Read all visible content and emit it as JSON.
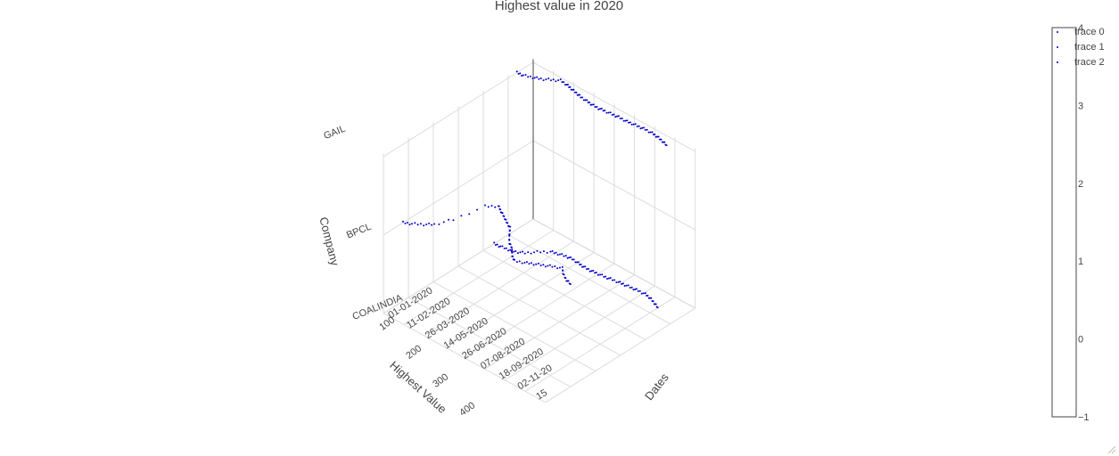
{
  "chart_data": {
    "type": "scatter",
    "title": "Highest value in 2020",
    "axes": {
      "x": {
        "title": "Dates",
        "ticks": [
          "01-01-2020",
          "11-02-2020",
          "26-03-2020",
          "14-05-2020",
          "26-06-2020",
          "07-08-2020",
          "18-09-2020",
          "02-11-20",
          "15"
        ]
      },
      "y": {
        "title": "Company",
        "ticks": [
          "COALINDIA",
          "BPCL",
          "GAIL"
        ]
      },
      "z": {
        "title": "Highest Value",
        "ticks": [
          "100",
          "200",
          "300",
          "400"
        ]
      }
    },
    "legend": {
      "placement": "top-right",
      "entries": [
        "trace 0",
        "trace 1",
        "trace 2"
      ]
    },
    "colorbar": {
      "ticks": [
        "4",
        "3",
        "2",
        "1",
        "0",
        "−1"
      ],
      "range": [
        -1,
        4
      ]
    },
    "marker_color": "#0000cc",
    "grid": true,
    "series": [
      {
        "company": "GAIL",
        "points": [
          {
            "date": "01-01-2020",
            "value": 130
          },
          {
            "date": "15-01-2020",
            "value": 128
          },
          {
            "date": "01-02-2020",
            "value": 120
          },
          {
            "date": "15-02-2020",
            "value": 112
          },
          {
            "date": "01-03-2020",
            "value": 100
          },
          {
            "date": "15-03-2020",
            "value": 88
          },
          {
            "date": "01-04-2020",
            "value": 90
          },
          {
            "date": "15-04-2020",
            "value": 94
          },
          {
            "date": "01-05-2020",
            "value": 98
          },
          {
            "date": "15-05-2020",
            "value": 102
          },
          {
            "date": "01-06-2020",
            "value": 104
          },
          {
            "date": "15-06-2020",
            "value": 106
          },
          {
            "date": "01-07-2020",
            "value": 106
          },
          {
            "date": "15-07-2020",
            "value": 104
          },
          {
            "date": "01-08-2020",
            "value": 102
          },
          {
            "date": "15-08-2020",
            "value": 100
          },
          {
            "date": "01-09-2020",
            "value": 100
          },
          {
            "date": "15-09-2020",
            "value": 98
          },
          {
            "date": "01-10-2020",
            "value": 96
          },
          {
            "date": "15-10-2020",
            "value": 94
          },
          {
            "date": "01-11-2020",
            "value": 94
          },
          {
            "date": "15-11-2020",
            "value": 96
          },
          {
            "date": "01-12-2020",
            "value": 100
          },
          {
            "date": "15-12-2020",
            "value": 105
          }
        ]
      },
      {
        "company": "BPCL",
        "points": [
          {
            "date": "01-01-2020",
            "value": 480
          },
          {
            "date": "15-01-2020",
            "value": 470
          },
          {
            "date": "01-02-2020",
            "value": 455
          },
          {
            "date": "15-02-2020",
            "value": 440
          },
          {
            "date": "01-03-2020",
            "value": 400
          },
          {
            "date": "15-03-2020",
            "value": 320
          },
          {
            "date": "01-04-2020",
            "value": 300
          },
          {
            "date": "15-04-2020",
            "value": 310
          },
          {
            "date": "01-05-2020",
            "value": 320
          },
          {
            "date": "15-05-2020",
            "value": 330
          },
          {
            "date": "01-06-2020",
            "value": 340
          },
          {
            "date": "15-06-2020",
            "value": 360
          },
          {
            "date": "01-07-2020",
            "value": 380
          },
          {
            "date": "15-07-2020",
            "value": 390
          },
          {
            "date": "01-08-2020",
            "value": 410
          },
          {
            "date": "15-08-2020",
            "value": 420
          },
          {
            "date": "01-09-2020",
            "value": 410
          },
          {
            "date": "15-09-2020",
            "value": 400
          },
          {
            "date": "01-10-2020",
            "value": 390
          },
          {
            "date": "15-10-2020",
            "value": 380
          },
          {
            "date": "01-11-2020",
            "value": 370
          },
          {
            "date": "15-11-2020",
            "value": 385
          },
          {
            "date": "01-12-2020",
            "value": 395
          },
          {
            "date": "15-12-2020",
            "value": 400
          }
        ]
      },
      {
        "company": "COALINDIA",
        "points": [
          {
            "date": "01-01-2020",
            "value": 200
          },
          {
            "date": "15-01-2020",
            "value": 198
          },
          {
            "date": "01-02-2020",
            "value": 195
          },
          {
            "date": "15-02-2020",
            "value": 190
          },
          {
            "date": "01-03-2020",
            "value": 180
          },
          {
            "date": "15-03-2020",
            "value": 160
          },
          {
            "date": "01-04-2020",
            "value": 140
          },
          {
            "date": "15-04-2020",
            "value": 135
          },
          {
            "date": "01-05-2020",
            "value": 130
          },
          {
            "date": "15-05-2020",
            "value": 128
          },
          {
            "date": "01-06-2020",
            "value": 130
          },
          {
            "date": "15-06-2020",
            "value": 132
          },
          {
            "date": "01-07-2020",
            "value": 132
          },
          {
            "date": "15-07-2020",
            "value": 130
          },
          {
            "date": "01-08-2020",
            "value": 128
          },
          {
            "date": "15-08-2020",
            "value": 125
          },
          {
            "date": "01-09-2020",
            "value": 122
          },
          {
            "date": "15-09-2020",
            "value": 120
          },
          {
            "date": "01-10-2020",
            "value": 118
          },
          {
            "date": "15-10-2020",
            "value": 116
          },
          {
            "date": "01-11-2020",
            "value": 115
          },
          {
            "date": "15-11-2020",
            "value": 118
          },
          {
            "date": "01-12-2020",
            "value": 125
          },
          {
            "date": "15-12-2020",
            "value": 132
          }
        ]
      }
    ]
  }
}
